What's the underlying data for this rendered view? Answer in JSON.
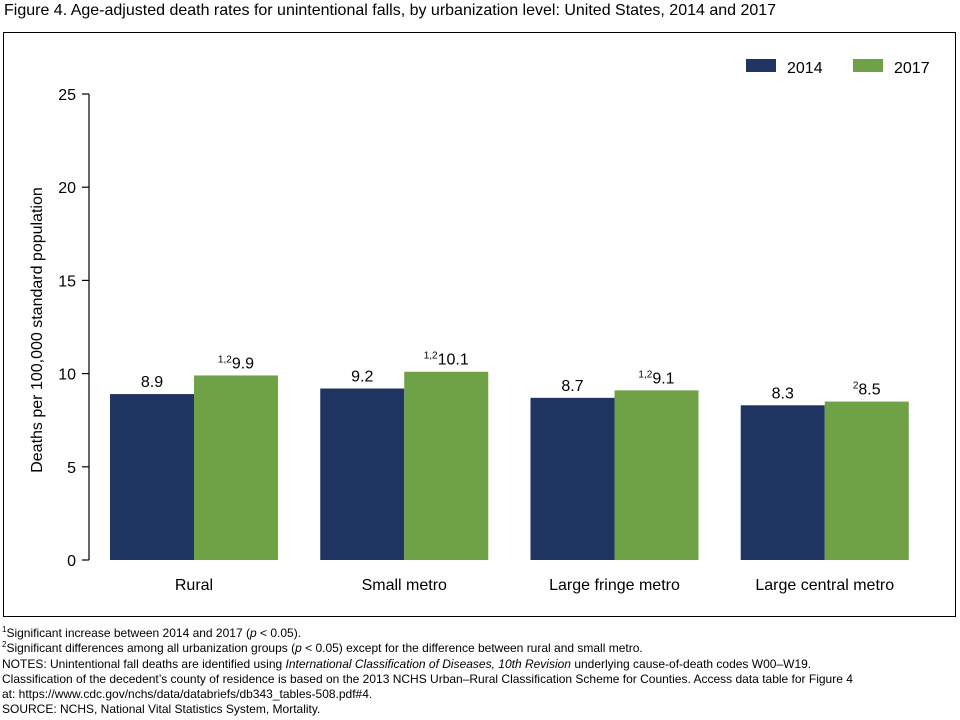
{
  "title": "Figure 4. Age-adjusted death rates for unintentional falls, by urbanization level: United States, 2014 and 2017",
  "colors": {
    "series_2014": "#1f3461",
    "series_2017": "#6fa147"
  },
  "chart_data": {
    "type": "bar",
    "categories": [
      "Rural",
      "Small metro",
      "Large fringe metro",
      "Large central metro"
    ],
    "series": [
      {
        "name": "2014",
        "values": [
          8.9,
          9.2,
          8.7,
          8.3
        ],
        "labels": [
          "8.9",
          "9.2",
          "8.7",
          "8.3"
        ],
        "label_sup": [
          "",
          "",
          "",
          ""
        ]
      },
      {
        "name": "2017",
        "values": [
          9.9,
          10.1,
          9.1,
          8.5
        ],
        "labels": [
          "9.9",
          "10.1",
          "9.1",
          "8.5"
        ],
        "label_sup": [
          "1,2",
          "1,2",
          "1,2",
          "2"
        ]
      }
    ],
    "ylabel": "Deaths per 100,000 standard population",
    "xlabel": "",
    "ylim": [
      0,
      25
    ],
    "yticks": [
      0,
      5,
      10,
      15,
      20,
      25
    ],
    "grid": false,
    "legend_position": "top-right"
  },
  "notes": {
    "note1_sup": "1",
    "note1": "Significant increase between 2014 and 2017 (",
    "note1_p": "p",
    "note1_end": " < 0.05).",
    "note2_sup": "2",
    "note2": "Significant differences among all urbanization groups (",
    "note2_p": "p",
    "note2_end": " < 0.05) except for the difference between rural and small metro.",
    "notes_a": "NOTES: Unintentional fall deaths are identified using ",
    "notes_icd": "International Classification of Diseases, 10th Revision",
    "notes_b": " underlying cause-of-death codes W00–W19.",
    "notes_line2": "Classification of the decedent’s county of residence is based on the 2013 NCHS Urban–Rural Classification Scheme for Counties. Access data table for Figure 4",
    "notes_line3": "at: https://www.cdc.gov/nchs/data/databriefs/db343_tables-508.pdf#4.",
    "source": "SOURCE: NCHS, National Vital Statistics System, Mortality."
  }
}
